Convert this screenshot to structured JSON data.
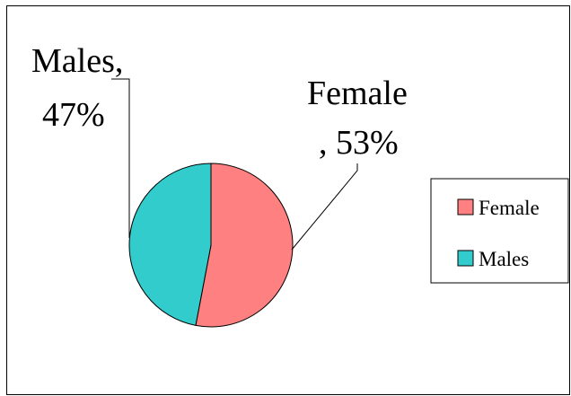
{
  "chart_data": {
    "type": "pie",
    "title": "",
    "categories": [
      "Female",
      "Males"
    ],
    "values": [
      53,
      47
    ],
    "unit": "%",
    "colors": {
      "Female": "#ff8080",
      "Males": "#33cccc"
    },
    "data_labels": [
      {
        "category": "Female",
        "line1": "Female",
        "line2": ", 53%"
      },
      {
        "category": "Males",
        "line1": "Males,",
        "line2": "47%"
      }
    ],
    "legend": {
      "placement": "right",
      "entries": [
        "Female",
        "Males"
      ]
    }
  }
}
